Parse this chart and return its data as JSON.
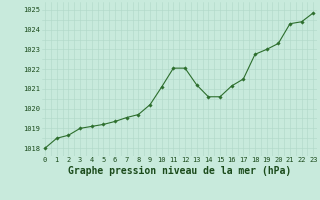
{
  "title": "Graphe pression niveau de la mer (hPa)",
  "x_values": [
    0,
    1,
    2,
    3,
    4,
    5,
    6,
    7,
    8,
    9,
    10,
    11,
    12,
    13,
    14,
    15,
    16,
    17,
    18,
    19,
    20,
    21,
    22,
    23
  ],
  "y_values": [
    1018.0,
    1018.5,
    1018.65,
    1019.0,
    1019.1,
    1019.2,
    1019.35,
    1019.55,
    1019.7,
    1020.2,
    1021.1,
    1022.05,
    1022.05,
    1021.2,
    1020.6,
    1020.6,
    1021.15,
    1021.5,
    1022.75,
    1023.0,
    1023.3,
    1024.3,
    1024.4,
    1024.85
  ],
  "ylim_min": 1017.6,
  "ylim_max": 1025.4,
  "yticks": [
    1018,
    1019,
    1020,
    1021,
    1022,
    1023,
    1024,
    1025
  ],
  "xticks": [
    0,
    1,
    2,
    3,
    4,
    5,
    6,
    7,
    8,
    9,
    10,
    11,
    12,
    13,
    14,
    15,
    16,
    17,
    18,
    19,
    20,
    21,
    22,
    23
  ],
  "line_color": "#2d6e2d",
  "marker_color": "#2d6e2d",
  "bg_color": "#c8eadc",
  "grid_color": "#b0d8c8",
  "title_color": "#1a4a1a",
  "tick_color": "#1a4a1a",
  "title_fontsize": 7.0,
  "tick_fontsize": 5.0,
  "xlim_min": -0.3,
  "xlim_max": 23.3
}
